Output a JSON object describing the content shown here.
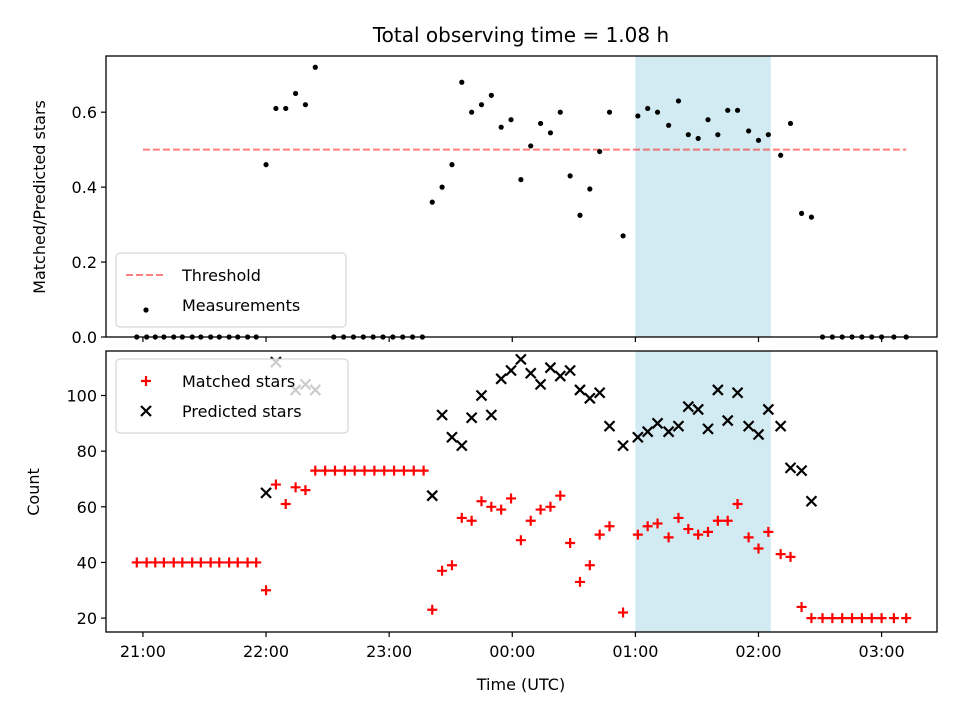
{
  "chart_data": [
    {
      "panel": "top",
      "type": "scatter",
      "title": "Total observing time = 1.08 h",
      "xlabel": "",
      "ylabel": "Matched/Predicted stars",
      "x_unit": "hours since 21:00 UTC",
      "xlim": [
        -0.3,
        6.45
      ],
      "ylim": [
        0,
        0.75
      ],
      "yticks": [
        0.0,
        0.2,
        0.4,
        0.6
      ],
      "ytick_labels": [
        "0.0",
        "0.2",
        "0.4",
        "0.6"
      ],
      "xticks": [
        0,
        1,
        2,
        3,
        4,
        5,
        6
      ],
      "highlight_span": [
        4.0,
        5.1
      ],
      "highlight_color": "#add8e6",
      "legend_position": "lower-left",
      "threshold": {
        "name": "Threshold",
        "value": 0.5,
        "x_start": 0.0,
        "x_end": 6.2,
        "color": "#ff0000",
        "style": "dashed"
      },
      "series": [
        {
          "name": "Measurements",
          "color": "#000000",
          "marker": "dot",
          "points": [
            [
              -0.05,
              0
            ],
            [
              0.03,
              0
            ],
            [
              0.1,
              0
            ],
            [
              0.17,
              0
            ],
            [
              0.25,
              0
            ],
            [
              0.32,
              0
            ],
            [
              0.4,
              0
            ],
            [
              0.47,
              0
            ],
            [
              0.55,
              0
            ],
            [
              0.62,
              0
            ],
            [
              0.7,
              0
            ],
            [
              0.77,
              0
            ],
            [
              0.85,
              0
            ],
            [
              0.92,
              0
            ],
            [
              1.0,
              0.46
            ],
            [
              1.08,
              0.61
            ],
            [
              1.16,
              0.61
            ],
            [
              1.24,
              0.65
            ],
            [
              1.32,
              0.62
            ],
            [
              1.4,
              0.72
            ],
            [
              1.55,
              0
            ],
            [
              1.63,
              0
            ],
            [
              1.71,
              0
            ],
            [
              1.79,
              0
            ],
            [
              1.87,
              0
            ],
            [
              1.95,
              0
            ],
            [
              2.03,
              0
            ],
            [
              2.11,
              0
            ],
            [
              2.19,
              0
            ],
            [
              2.27,
              0
            ],
            [
              2.35,
              0.36
            ],
            [
              2.43,
              0.4
            ],
            [
              2.51,
              0.46
            ],
            [
              2.59,
              0.68
            ],
            [
              2.67,
              0.6
            ],
            [
              2.75,
              0.62
            ],
            [
              2.83,
              0.645
            ],
            [
              2.91,
              0.56
            ],
            [
              2.99,
              0.58
            ],
            [
              3.07,
              0.42
            ],
            [
              3.15,
              0.51
            ],
            [
              3.23,
              0.57
            ],
            [
              3.31,
              0.545
            ],
            [
              3.39,
              0.6
            ],
            [
              3.47,
              0.43
            ],
            [
              3.55,
              0.325
            ],
            [
              3.63,
              0.395
            ],
            [
              3.71,
              0.495
            ],
            [
              3.79,
              0.6
            ],
            [
              3.9,
              0.27
            ],
            [
              4.02,
              0.59
            ],
            [
              4.1,
              0.61
            ],
            [
              4.18,
              0.6
            ],
            [
              4.27,
              0.565
            ],
            [
              4.35,
              0.63
            ],
            [
              4.43,
              0.54
            ],
            [
              4.51,
              0.53
            ],
            [
              4.59,
              0.58
            ],
            [
              4.67,
              0.54
            ],
            [
              4.75,
              0.605
            ],
            [
              4.83,
              0.605
            ],
            [
              4.92,
              0.55
            ],
            [
              5.0,
              0.525
            ],
            [
              5.08,
              0.54
            ],
            [
              5.18,
              0.485
            ],
            [
              5.26,
              0.57
            ],
            [
              5.35,
              0.33
            ],
            [
              5.43,
              0.32
            ],
            [
              5.52,
              0
            ],
            [
              5.6,
              0
            ],
            [
              5.68,
              0
            ],
            [
              5.76,
              0
            ],
            [
              5.84,
              0
            ],
            [
              5.92,
              0
            ],
            [
              6.0,
              0
            ],
            [
              6.1,
              0
            ],
            [
              6.2,
              0
            ]
          ]
        }
      ]
    },
    {
      "panel": "bottom",
      "type": "scatter",
      "title": "",
      "xlabel": "Time (UTC)",
      "ylabel": "Count",
      "x_unit": "hours since 21:00 UTC",
      "xlim": [
        -0.3,
        6.45
      ],
      "ylim": [
        15,
        116
      ],
      "yticks": [
        20,
        40,
        60,
        80,
        100
      ],
      "ytick_labels": [
        "20",
        "40",
        "60",
        "80",
        "100"
      ],
      "xticks": [
        0,
        1,
        2,
        3,
        4,
        5,
        6
      ],
      "xtick_labels": [
        "21:00",
        "22:00",
        "23:00",
        "00:00",
        "01:00",
        "02:00",
        "03:00"
      ],
      "highlight_span": [
        4.0,
        5.1
      ],
      "highlight_color": "#add8e6",
      "legend_position": "upper-left",
      "series": [
        {
          "name": "Matched stars",
          "color": "#ff0000",
          "marker": "plus",
          "points": [
            [
              -0.05,
              40
            ],
            [
              0.03,
              40
            ],
            [
              0.1,
              40
            ],
            [
              0.17,
              40
            ],
            [
              0.25,
              40
            ],
            [
              0.32,
              40
            ],
            [
              0.4,
              40
            ],
            [
              0.47,
              40
            ],
            [
              0.55,
              40
            ],
            [
              0.62,
              40
            ],
            [
              0.7,
              40
            ],
            [
              0.77,
              40
            ],
            [
              0.85,
              40
            ],
            [
              0.92,
              40
            ],
            [
              1.0,
              30
            ],
            [
              1.08,
              68
            ],
            [
              1.16,
              61
            ],
            [
              1.24,
              67
            ],
            [
              1.32,
              66
            ],
            [
              1.4,
              73
            ],
            [
              1.48,
              73
            ],
            [
              1.56,
              73
            ],
            [
              1.64,
              73
            ],
            [
              1.72,
              73
            ],
            [
              1.8,
              73
            ],
            [
              1.88,
              73
            ],
            [
              1.96,
              73
            ],
            [
              2.04,
              73
            ],
            [
              2.12,
              73
            ],
            [
              2.2,
              73
            ],
            [
              2.28,
              73
            ],
            [
              2.35,
              23
            ],
            [
              2.43,
              37
            ],
            [
              2.51,
              39
            ],
            [
              2.59,
              56
            ],
            [
              2.67,
              55
            ],
            [
              2.75,
              62
            ],
            [
              2.83,
              60
            ],
            [
              2.91,
              59
            ],
            [
              2.99,
              63
            ],
            [
              3.07,
              48
            ],
            [
              3.15,
              55
            ],
            [
              3.23,
              59
            ],
            [
              3.31,
              60
            ],
            [
              3.39,
              64
            ],
            [
              3.47,
              47
            ],
            [
              3.55,
              33
            ],
            [
              3.63,
              39
            ],
            [
              3.71,
              50
            ],
            [
              3.79,
              53
            ],
            [
              3.9,
              22
            ],
            [
              4.02,
              50
            ],
            [
              4.1,
              53
            ],
            [
              4.18,
              54
            ],
            [
              4.27,
              49
            ],
            [
              4.35,
              56
            ],
            [
              4.43,
              52
            ],
            [
              4.51,
              50
            ],
            [
              4.59,
              51
            ],
            [
              4.67,
              55
            ],
            [
              4.75,
              55
            ],
            [
              4.83,
              61
            ],
            [
              4.92,
              49
            ],
            [
              5.0,
              45
            ],
            [
              5.08,
              51
            ],
            [
              5.18,
              43
            ],
            [
              5.26,
              42
            ],
            [
              5.35,
              24
            ],
            [
              5.43,
              20
            ],
            [
              5.52,
              20
            ],
            [
              5.6,
              20
            ],
            [
              5.68,
              20
            ],
            [
              5.76,
              20
            ],
            [
              5.84,
              20
            ],
            [
              5.92,
              20
            ],
            [
              6.0,
              20
            ],
            [
              6.1,
              20
            ],
            [
              6.2,
              20
            ]
          ]
        },
        {
          "name": "Predicted stars",
          "color": "#000000",
          "marker": "x",
          "points": [
            [
              1.0,
              65
            ],
            [
              1.08,
              112
            ],
            [
              1.24,
              102
            ],
            [
              1.32,
              104
            ],
            [
              1.4,
              102
            ],
            [
              2.35,
              64
            ],
            [
              2.43,
              93
            ],
            [
              2.51,
              85
            ],
            [
              2.59,
              82
            ],
            [
              2.67,
              92
            ],
            [
              2.75,
              100
            ],
            [
              2.83,
              93
            ],
            [
              2.91,
              106
            ],
            [
              2.99,
              109
            ],
            [
              3.07,
              113
            ],
            [
              3.15,
              108
            ],
            [
              3.23,
              104
            ],
            [
              3.31,
              110
            ],
            [
              3.39,
              107
            ],
            [
              3.47,
              109
            ],
            [
              3.55,
              102
            ],
            [
              3.63,
              99
            ],
            [
              3.71,
              101
            ],
            [
              3.79,
              89
            ],
            [
              3.9,
              82
            ],
            [
              4.02,
              85
            ],
            [
              4.1,
              87
            ],
            [
              4.18,
              90
            ],
            [
              4.27,
              87
            ],
            [
              4.35,
              89
            ],
            [
              4.43,
              96
            ],
            [
              4.51,
              95
            ],
            [
              4.59,
              88
            ],
            [
              4.67,
              102
            ],
            [
              4.75,
              91
            ],
            [
              4.83,
              101
            ],
            [
              4.92,
              89
            ],
            [
              5.0,
              86
            ],
            [
              5.08,
              95
            ],
            [
              5.18,
              89
            ],
            [
              5.26,
              74
            ],
            [
              5.35,
              73
            ],
            [
              5.43,
              62
            ]
          ]
        }
      ]
    }
  ]
}
